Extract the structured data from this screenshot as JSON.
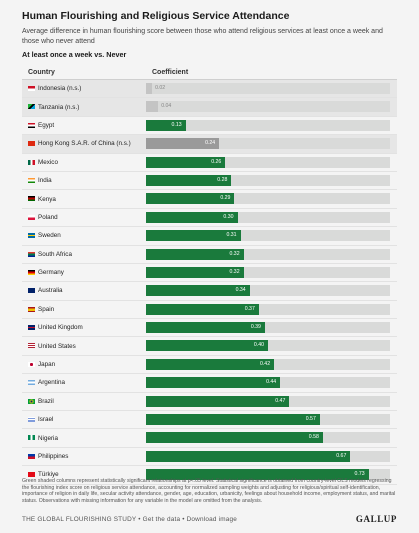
{
  "title": "Human Flourishing and Religious Service Attendance",
  "subtitle": "Average difference in human flourishing score between those who attend religious services at least once a week and those who never attend",
  "comparison": "At least once a week vs. Never",
  "chart_data": {
    "type": "bar",
    "orientation": "horizontal",
    "column_headers": [
      "Country",
      "Coefficient"
    ],
    "xlim": [
      0,
      0.8
    ],
    "rows": [
      {
        "country": "Indonesia (n.s.)",
        "value": 0.02,
        "label": "0.02",
        "significant": false,
        "flag": "indonesia-flag-icon"
      },
      {
        "country": "Tanzania (n.s.)",
        "value": 0.04,
        "label": "0.04",
        "significant": false,
        "flag": "tanzania-flag-icon"
      },
      {
        "country": "Egypt",
        "value": 0.13,
        "label": "0.13",
        "significant": true,
        "flag": "egypt-flag-icon"
      },
      {
        "country": "Hong Kong S.A.R. of China (n.s.)",
        "value": 0.24,
        "label": "0.24",
        "significant": false,
        "flag": "hong-kong-flag-icon"
      },
      {
        "country": "Mexico",
        "value": 0.26,
        "label": "0.26",
        "significant": true,
        "flag": "mexico-flag-icon"
      },
      {
        "country": "India",
        "value": 0.28,
        "label": "0.28",
        "significant": true,
        "flag": "india-flag-icon"
      },
      {
        "country": "Kenya",
        "value": 0.29,
        "label": "0.29",
        "significant": true,
        "flag": "kenya-flag-icon"
      },
      {
        "country": "Poland",
        "value": 0.3,
        "label": "0.30",
        "significant": true,
        "flag": "poland-flag-icon"
      },
      {
        "country": "Sweden",
        "value": 0.31,
        "label": "0.31",
        "significant": true,
        "flag": "sweden-flag-icon"
      },
      {
        "country": "South Africa",
        "value": 0.32,
        "label": "0.32",
        "significant": true,
        "flag": "south-africa-flag-icon"
      },
      {
        "country": "Germany",
        "value": 0.32,
        "label": "0.32",
        "significant": true,
        "flag": "germany-flag-icon"
      },
      {
        "country": "Australia",
        "value": 0.34,
        "label": "0.34",
        "significant": true,
        "flag": "australia-flag-icon"
      },
      {
        "country": "Spain",
        "value": 0.37,
        "label": "0.37",
        "significant": true,
        "flag": "spain-flag-icon"
      },
      {
        "country": "United Kingdom",
        "value": 0.39,
        "label": "0.39",
        "significant": true,
        "flag": "united-kingdom-flag-icon"
      },
      {
        "country": "United States",
        "value": 0.4,
        "label": "0.40",
        "significant": true,
        "flag": "united-states-flag-icon"
      },
      {
        "country": "Japan",
        "value": 0.42,
        "label": "0.42",
        "significant": true,
        "flag": "japan-flag-icon"
      },
      {
        "country": "Argentina",
        "value": 0.44,
        "label": "0.44",
        "significant": true,
        "flag": "argentina-flag-icon"
      },
      {
        "country": "Brazil",
        "value": 0.47,
        "label": "0.47",
        "significant": true,
        "flag": "brazil-flag-icon"
      },
      {
        "country": "Israel",
        "value": 0.57,
        "label": "0.57",
        "significant": true,
        "flag": "israel-flag-icon"
      },
      {
        "country": "Nigeria",
        "value": 0.58,
        "label": "0.58",
        "significant": true,
        "flag": "nigeria-flag-icon"
      },
      {
        "country": "Philippines",
        "value": 0.67,
        "label": "0.67",
        "significant": true,
        "flag": "philippines-flag-icon"
      },
      {
        "country": "Türkiye",
        "value": 0.73,
        "label": "0.73",
        "significant": true,
        "flag": "turkiye-flag-icon"
      }
    ],
    "colors": {
      "significant": "#1a7a3c",
      "not_significant": "#9a9a9a",
      "track": "#d9dad9",
      "ns_row_background": "#e6e6e6"
    }
  },
  "footnote": "Green shaded columns represent statistically significant relationships at p<.05 level. Statistical significance is obtained from country-level OLS models regressing the flourishing index score on religious service attendance, accounting for normalized sampling weights and adjusting for religious/spiritual self-identification, importance of religion in daily life, secular activity attendance, gender, age, education, urbanicity, feelings about household income, employment status, and marital status. Observations with missing information for any variable in the model are omitted from the analysis.",
  "source_line": "THE GLOBAL FLOURISHING STUDY • Get the data • Download image",
  "logo": "GALLUP"
}
